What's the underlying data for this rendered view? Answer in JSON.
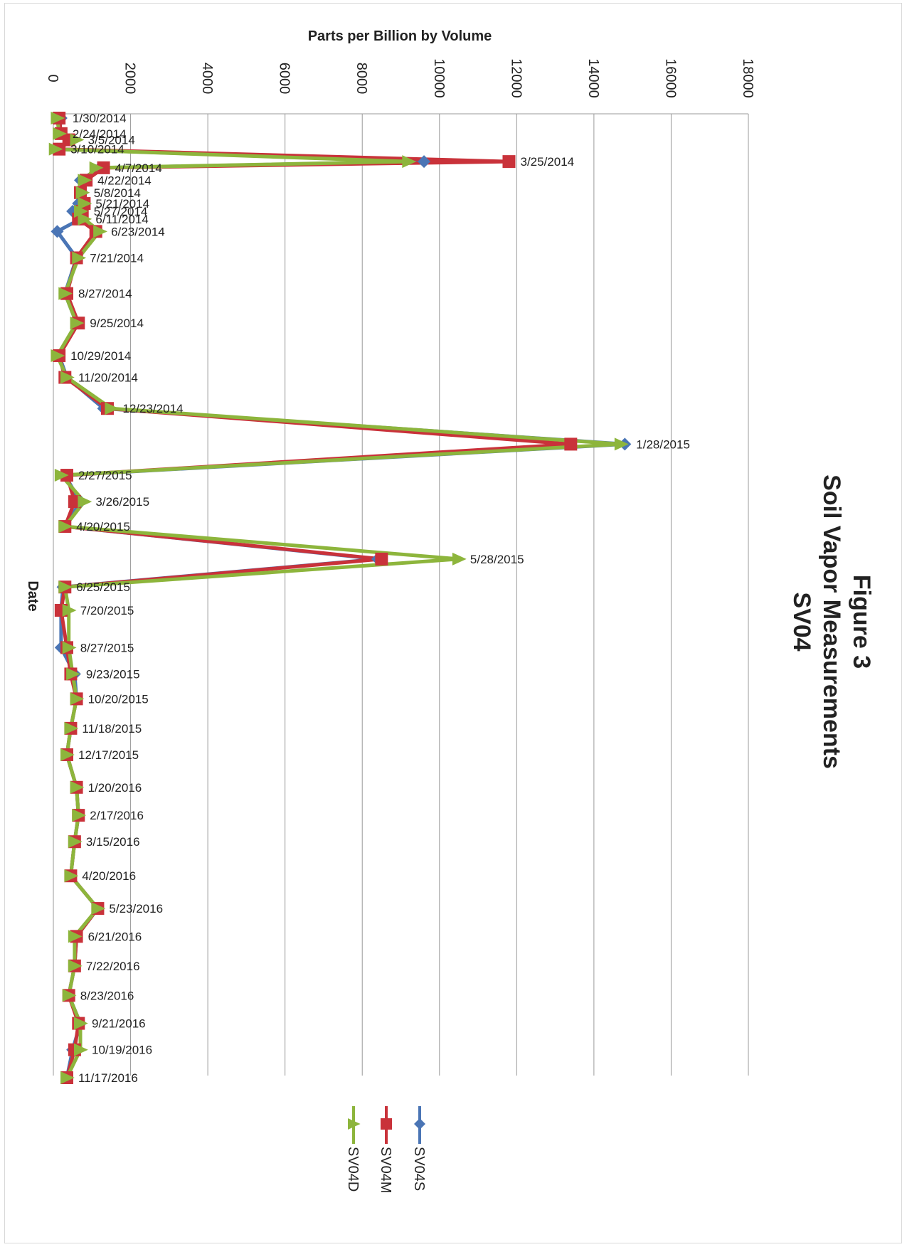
{
  "figure": {
    "title_lines": [
      "Figure 3",
      "Soil Vapor Measurements",
      "SV04"
    ]
  },
  "chart_data": {
    "type": "line",
    "orientation": "rotated-90-clockwise",
    "title": "Figure 3 Soil Vapor Measurements SV04",
    "xlabel": "Date",
    "ylabel": "Parts per Billion by Volume",
    "ylim": [
      0,
      18000
    ],
    "yticks": [
      0,
      2000,
      4000,
      6000,
      8000,
      10000,
      12000,
      14000,
      16000,
      18000
    ],
    "grid": true,
    "legend_position": "bottom",
    "categories": [
      "1/30/2014",
      "2/24/2014",
      "3/5/2014",
      "3/10/2014",
      "3/25/2014",
      "4/7/2014",
      "4/22/2014",
      "5/8/2014",
      "5/21/2014",
      "5/27/2014",
      "6/11/2014",
      "6/23/2014",
      "7/21/2014",
      "8/27/2014",
      "9/25/2014",
      "10/29/2014",
      "11/20/2014",
      "12/23/2014",
      "1/28/2015",
      "2/27/2015",
      "3/26/2015",
      "4/20/2015",
      "5/28/2015",
      "6/25/2015",
      "7/20/2015",
      "8/27/2015",
      "9/23/2015",
      "10/20/2015",
      "11/18/2015",
      "12/17/2015",
      "1/20/2016",
      "2/17/2016",
      "3/15/2016",
      "4/20/2016",
      "5/23/2016",
      "6/21/2016",
      "7/22/2016",
      "8/23/2016",
      "9/21/2016",
      "10/19/2016",
      "11/17/2016"
    ],
    "category_positions": [
      0.0,
      1.0,
      1.4,
      2.0,
      2.8,
      3.2,
      4.0,
      4.8,
      5.5,
      6.0,
      6.5,
      7.3,
      9.0,
      11.3,
      13.2,
      15.3,
      16.7,
      18.7,
      21.0,
      23.0,
      24.7,
      26.3,
      28.4,
      30.2,
      31.7,
      34.1,
      35.8,
      37.4,
      39.3,
      41.0,
      43.1,
      44.9,
      46.6,
      48.8,
      50.9,
      52.7,
      54.6,
      56.5,
      58.3,
      60.0,
      61.8
    ],
    "series": [
      {
        "name": "SV04S",
        "color": "#4a75b5",
        "marker": "diamond",
        "values": [
          200,
          150,
          500,
          100,
          9600,
          1200,
          700,
          750,
          650,
          500,
          700,
          100,
          600,
          300,
          600,
          150,
          350,
          1300,
          14800,
          300,
          700,
          300,
          8400,
          250,
          200,
          200,
          550,
          600,
          450,
          350,
          600,
          650,
          550,
          450,
          1150,
          600,
          550,
          400,
          700,
          500,
          350
        ]
      },
      {
        "name": "SV04M",
        "color": "#c9323a",
        "marker": "square",
        "values": [
          150,
          200,
          400,
          150,
          11800,
          1300,
          850,
          700,
          800,
          750,
          650,
          1100,
          600,
          350,
          650,
          150,
          300,
          1400,
          13400,
          350,
          550,
          300,
          8500,
          300,
          200,
          350,
          450,
          600,
          450,
          350,
          600,
          650,
          550,
          450,
          1150,
          600,
          550,
          400,
          650,
          550,
          350
        ]
      },
      {
        "name": "SV04D",
        "color": "#8db53c",
        "marker": "triangle",
        "values": [
          100,
          150,
          600,
          50,
          9200,
          1100,
          800,
          750,
          800,
          700,
          800,
          1200,
          650,
          300,
          600,
          100,
          350,
          1500,
          14700,
          200,
          800,
          300,
          10500,
          300,
          400,
          400,
          500,
          600,
          450,
          350,
          600,
          650,
          550,
          450,
          1150,
          550,
          550,
          400,
          700,
          700,
          350
        ]
      }
    ]
  }
}
